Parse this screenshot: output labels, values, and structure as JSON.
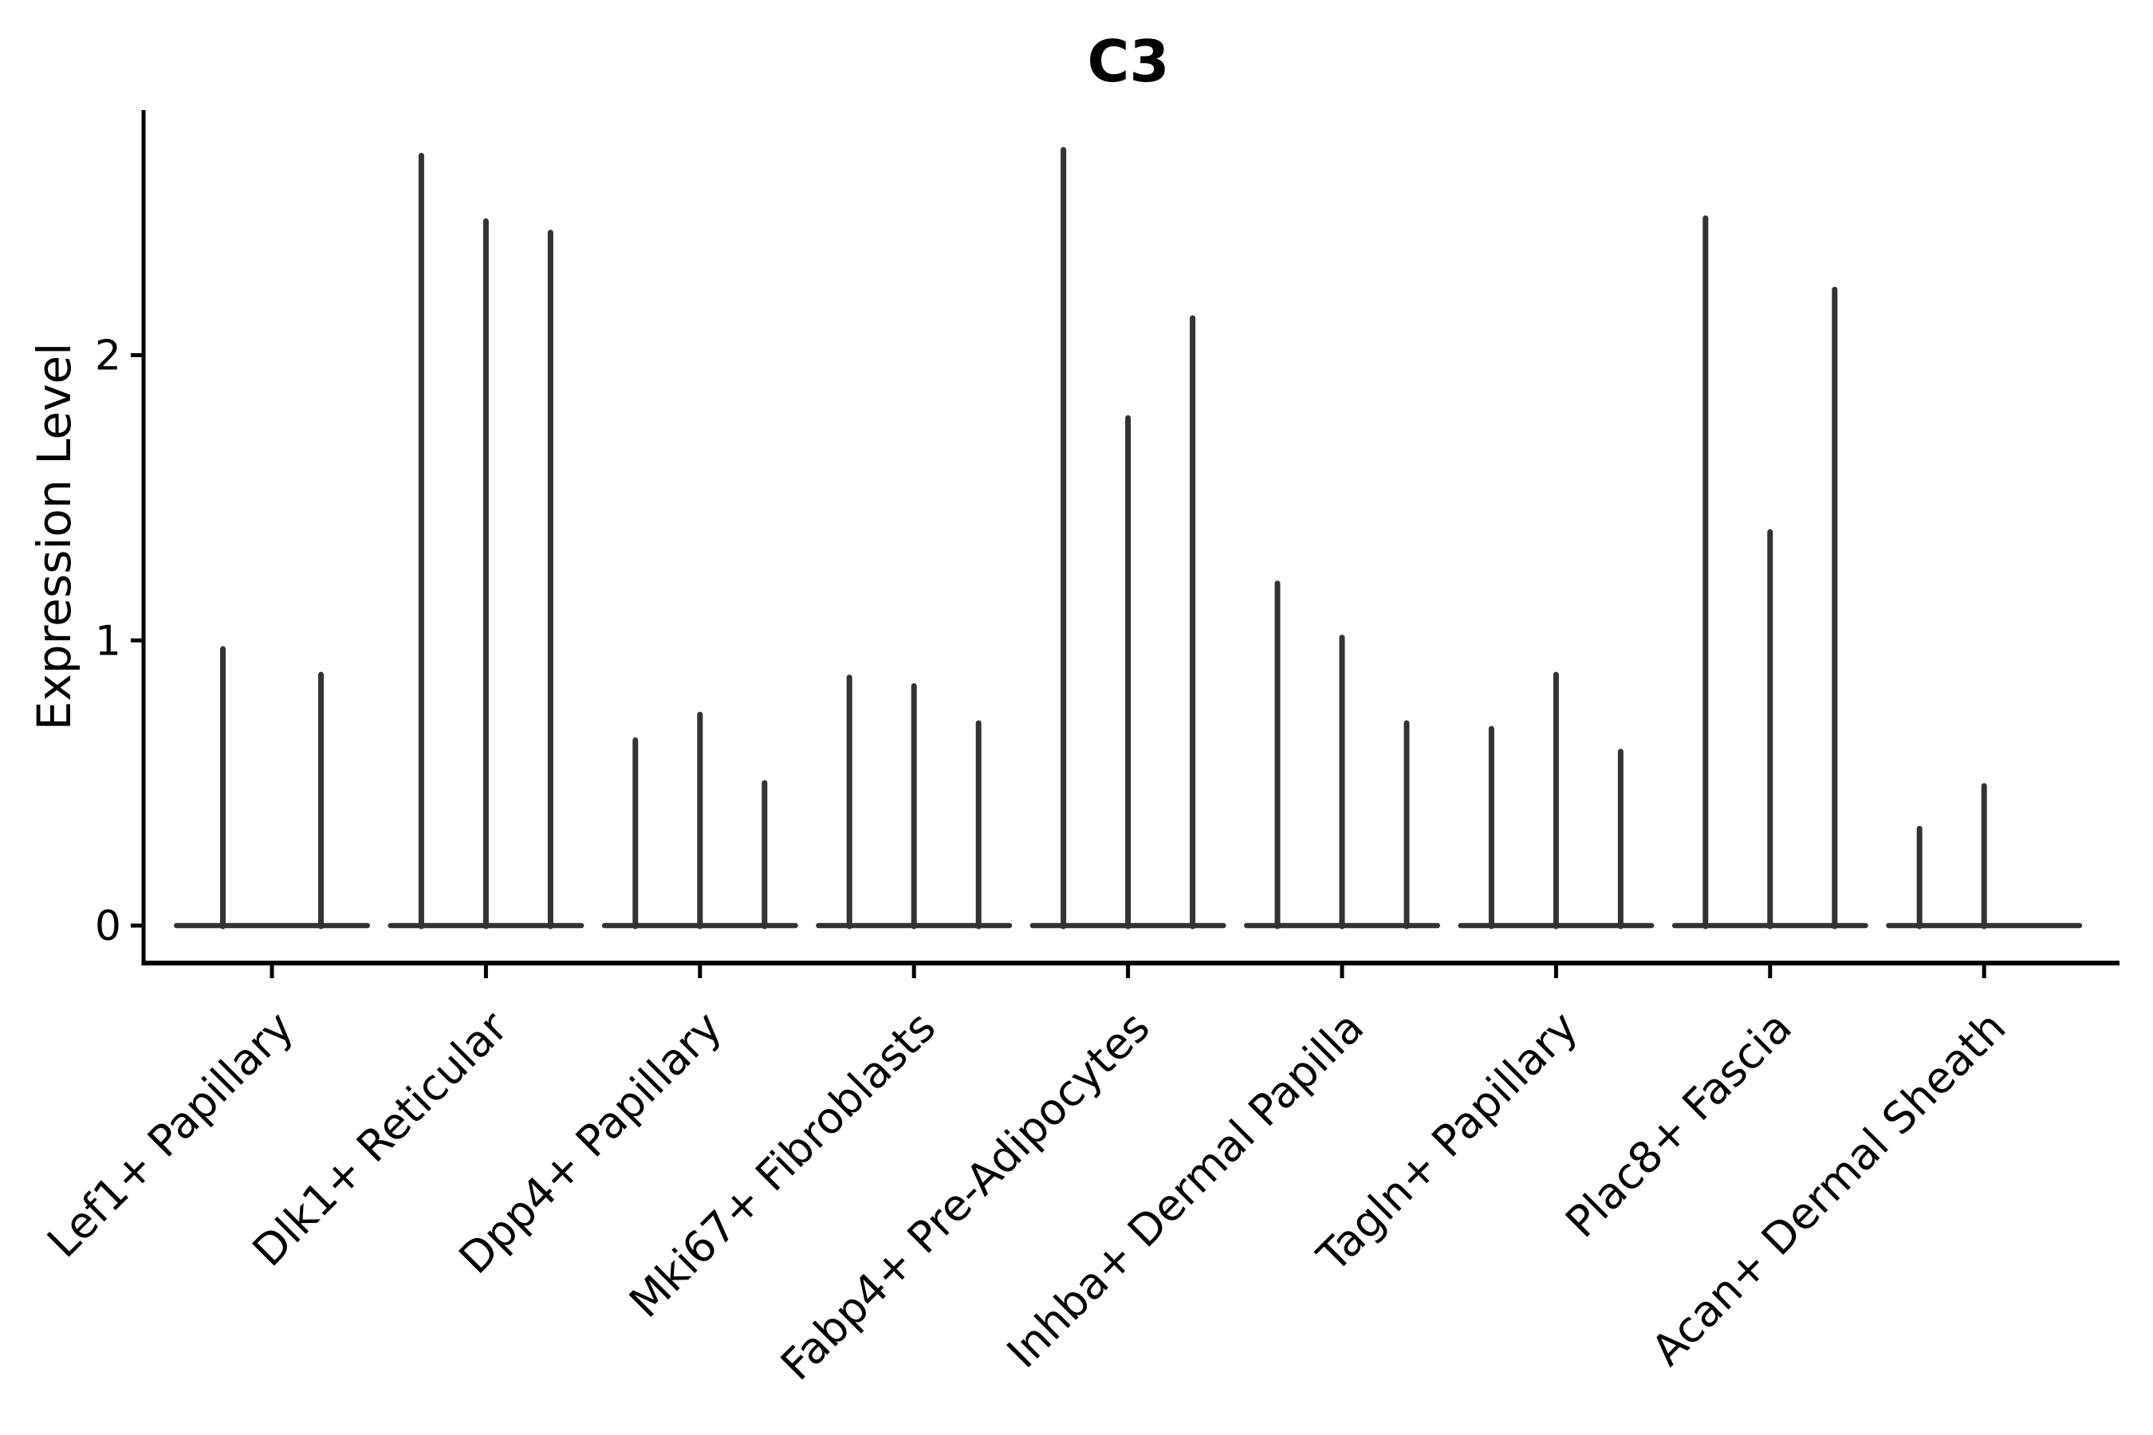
{
  "figure": {
    "background": "#ffffff"
  },
  "chart_data": {
    "type": "violin",
    "title": "C3",
    "ylabel": "Expression Level",
    "xlabel": "",
    "yticks": [
      0,
      1,
      2
    ],
    "ytick_labels": [
      "0",
      "1",
      "2"
    ],
    "ylim": [
      -0.13,
      2.86
    ],
    "grid": false,
    "legend": "none",
    "categories": [
      "Lef1+ Papillary",
      "Dlk1+ Reticular",
      "Dpp4+ Papillary",
      "Mki67+ Fibroblasts",
      "Fabp4+ Pre-Adipocytes",
      "Inhba+ Dermal Papilla",
      "Tagln+ Papillary",
      "Plac8+ Fascia",
      "Acan+ Dermal Sheath"
    ],
    "groups": [
      {
        "category": "Lef1+ Papillary",
        "violin_maxima": [
          0.97,
          0.88
        ]
      },
      {
        "category": "Dlk1+ Reticular",
        "violin_maxima": [
          2.7,
          2.47,
          2.43
        ]
      },
      {
        "category": "Dpp4+ Papillary",
        "violin_maxima": [
          0.65,
          0.74,
          0.5
        ]
      },
      {
        "category": "Mki67+ Fibroblasts",
        "violin_maxima": [
          0.87,
          0.84,
          0.71
        ]
      },
      {
        "category": "Fabp4+ Pre-Adipocytes",
        "violin_maxima": [
          2.72,
          1.78,
          2.13
        ]
      },
      {
        "category": "Inhba+ Dermal Papilla",
        "violin_maxima": [
          1.2,
          1.01,
          0.71
        ]
      },
      {
        "category": "Tagln+ Papillary",
        "violin_maxima": [
          0.69,
          0.88,
          0.61
        ]
      },
      {
        "category": "Plac8+ Fascia",
        "violin_maxima": [
          2.48,
          1.38,
          2.23
        ]
      },
      {
        "category": "Acan+ Dermal Sheath",
        "violin_maxima": [
          0.34,
          0.49,
          0.0
        ]
      }
    ],
    "style": {
      "violin_color": "#333333",
      "axis_color": "#000000",
      "text_color": "#000000",
      "background": "#ffffff"
    }
  }
}
